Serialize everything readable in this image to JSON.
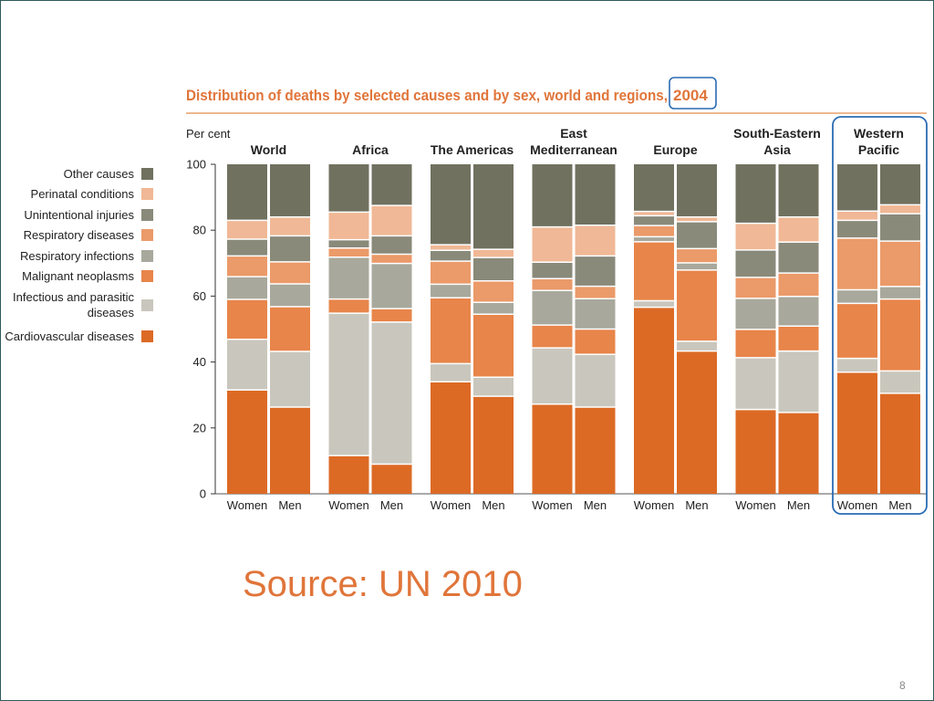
{
  "slide": {
    "source": "Source: UN 2010",
    "page_number": "8"
  },
  "colors": {
    "title": "#e0753a",
    "rule": "#e6a06a",
    "highlight": "#2b6cb3",
    "text": "#222222"
  },
  "chart_data": {
    "type": "bar",
    "stacked": true,
    "title": "Distribution of deaths by selected causes and by sex, world and regions,",
    "title_year": "2004",
    "ylabel": "Per cent",
    "ylim": [
      0,
      100
    ],
    "yticks": [
      0,
      20,
      40,
      60,
      80,
      100
    ],
    "highlighted_region": "Western Pacific",
    "regions": [
      {
        "name": [
          "World"
        ],
        "categories": [
          "Women",
          "Men"
        ]
      },
      {
        "name": [
          "Africa"
        ],
        "categories": [
          "Women",
          "Men"
        ]
      },
      {
        "name": [
          "The Americas"
        ],
        "categories": [
          "Women",
          "Men"
        ]
      },
      {
        "name": [
          "East",
          "Mediterranean"
        ],
        "categories": [
          "Women",
          "Men"
        ]
      },
      {
        "name": [
          "Europe"
        ],
        "categories": [
          "Women",
          "Men"
        ]
      },
      {
        "name": [
          "South-Eastern",
          "Asia"
        ],
        "categories": [
          "Women",
          "Men"
        ]
      },
      {
        "name": [
          "Western",
          "Pacific"
        ],
        "categories": [
          "Women",
          "Men"
        ]
      }
    ],
    "series": [
      {
        "name": "Cardiovascular diseases",
        "color": "#dc6a25",
        "values": [
          31.5,
          26.3,
          11.6,
          9,
          34,
          29.6,
          27.2,
          26.3,
          56.6,
          43.3,
          25.6,
          24.7,
          36.9,
          30.5
        ]
      },
      {
        "name": "Infectious and parasitic diseases",
        "color": "#c9c7bd",
        "values": [
          15.4,
          16.9,
          43.2,
          43.1,
          5.5,
          5.8,
          17.1,
          16.0,
          2,
          3,
          15.7,
          18.6,
          4.2,
          6.8
        ]
      },
      {
        "name": "Malignant neoplasms",
        "color": "#e8854a",
        "values": [
          12.1,
          13.6,
          4.3,
          4.1,
          20,
          19.1,
          6.9,
          7.7,
          17.9,
          21.6,
          8.6,
          7.6,
          16.7,
          21.8
        ]
      },
      {
        "name": "Respiratory infections",
        "color": "#a8a89c",
        "values": [
          6.9,
          6.9,
          12.7,
          13.7,
          4.1,
          3.6,
          10.5,
          9.2,
          1.5,
          2.2,
          9.4,
          9.0,
          4.1,
          3.8
        ]
      },
      {
        "name": "Respiratory diseases",
        "color": "#eb9a69",
        "values": [
          6.3,
          6.7,
          2.8,
          2.8,
          7,
          6.5,
          3.6,
          3.8,
          3.4,
          4.3,
          6.4,
          7.1,
          15.7,
          13.8
        ]
      },
      {
        "name": "Unintentional injuries",
        "color": "#8a8a7b",
        "values": [
          5.1,
          7.9,
          2.5,
          5.6,
          3.3,
          7.1,
          5,
          9.2,
          3,
          8.2,
          8.3,
          9.4,
          5.4,
          8.3
        ]
      },
      {
        "name": "Perinatal conditions",
        "color": "#f0b896",
        "values": [
          5.7,
          5.7,
          8.4,
          9.2,
          1.7,
          2.5,
          10.7,
          9.3,
          1.3,
          1.4,
          8.1,
          7.6,
          2.8,
          2.7
        ]
      },
      {
        "name": "Other causes",
        "color": "#717160",
        "values": [
          17,
          16,
          14.5,
          12.5,
          24.4,
          25.8,
          19,
          18.5,
          14.3,
          16,
          17.9,
          16,
          14.2,
          12.3
        ]
      }
    ]
  }
}
